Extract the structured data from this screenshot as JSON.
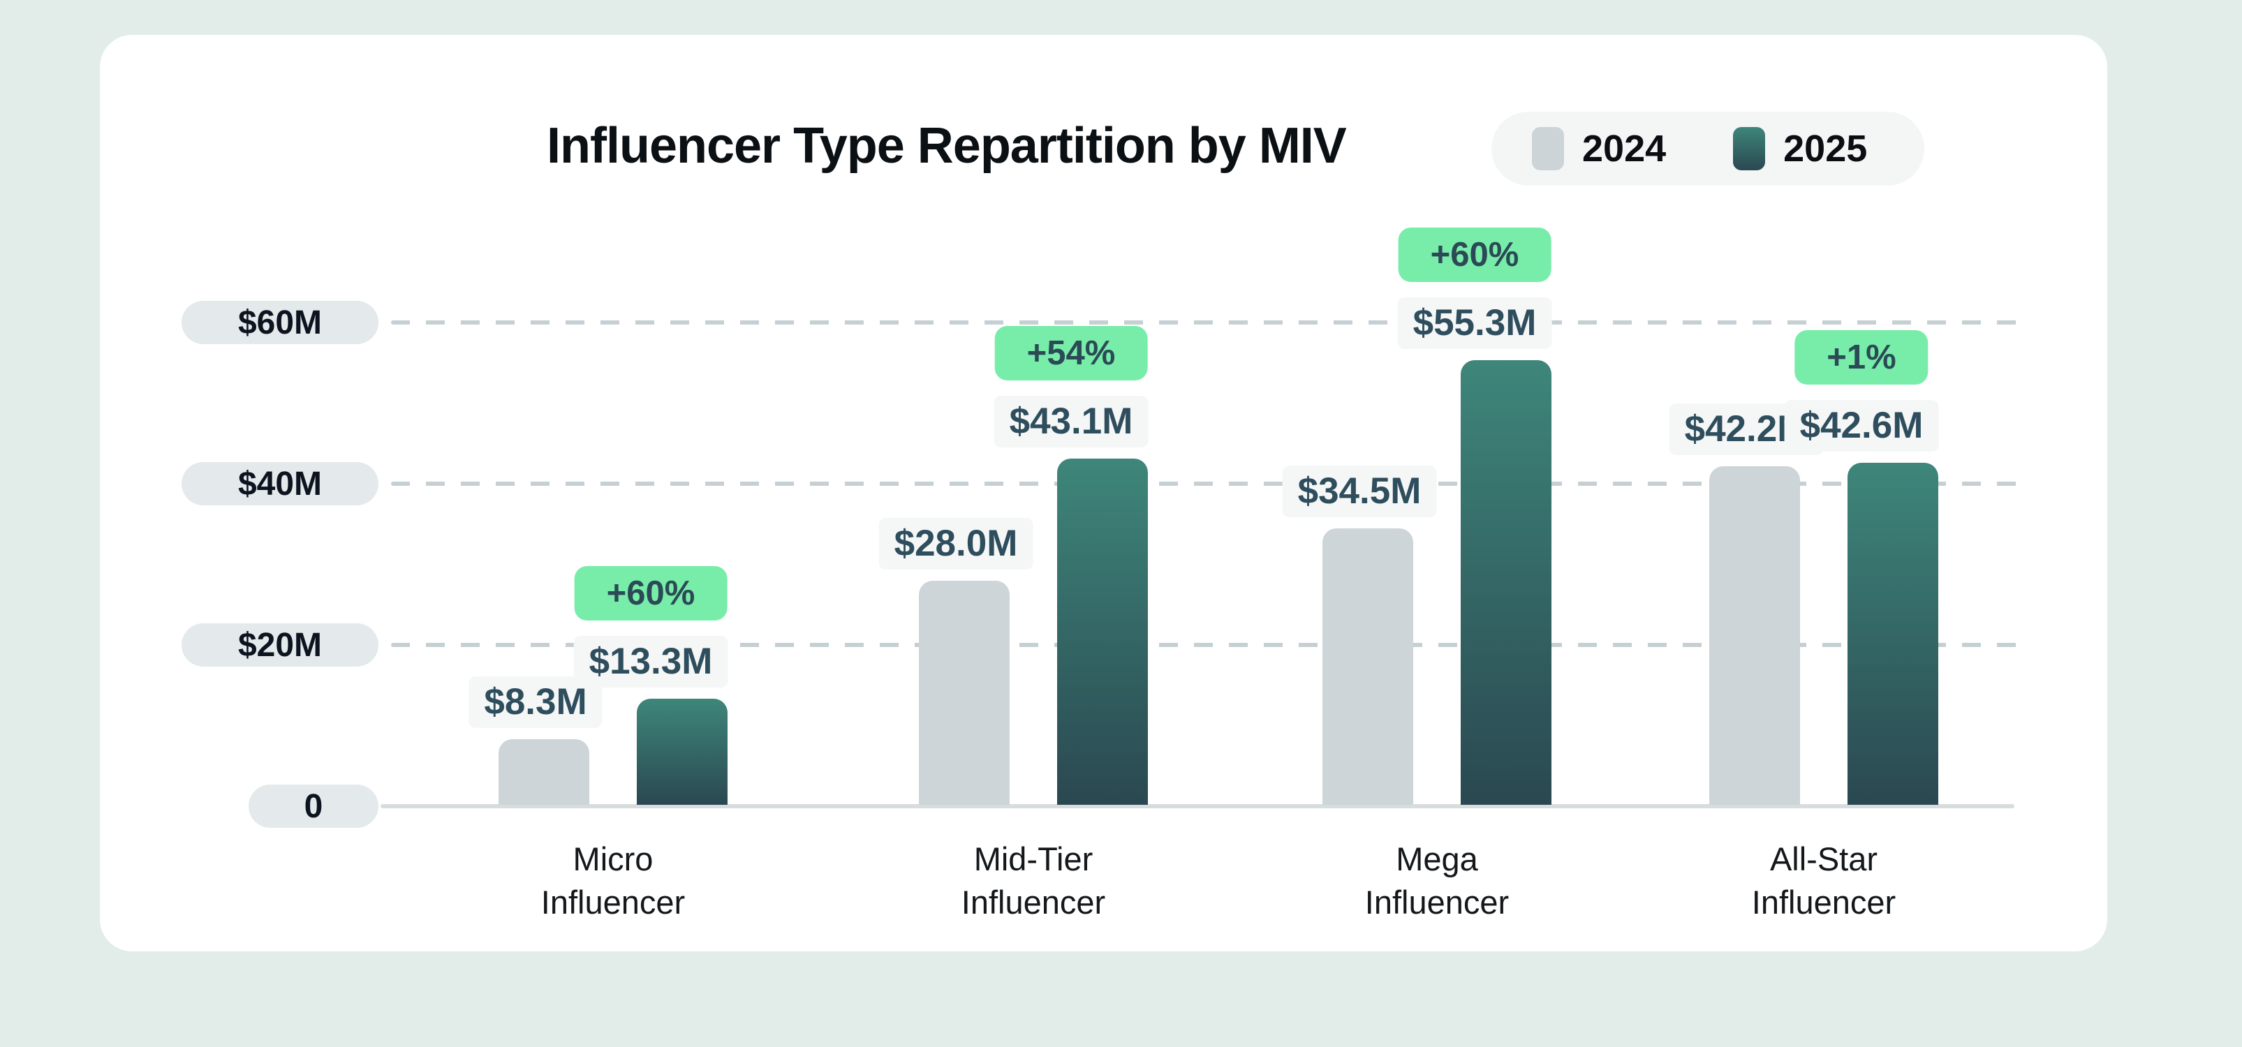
{
  "page": {
    "background_color": "#e2ece9",
    "card_color": "#ffffff"
  },
  "header": {
    "title": "Influencer Type Repartition by MIV"
  },
  "legend": {
    "items": [
      {
        "label": "2024",
        "swatch_color": "#ccd4d7"
      },
      {
        "label": "2025",
        "swatch_color_top": "#3e867a",
        "swatch_color_bottom": "#2a4851"
      }
    ]
  },
  "colors": {
    "bar_2024": "#cdd5d8",
    "bar_2025_top": "#3e867a",
    "bar_2025_bottom": "#2a4851",
    "badge_background": "#78eda9",
    "badge_text": "#2b4a55",
    "value_text": "#2e4d5d",
    "gridline": "#c6cfd3",
    "axis_line": "#d7dcde",
    "tick_pill": "#e4e9eb"
  },
  "chart_data": {
    "type": "bar",
    "title": "Influencer Type Repartition by MIV",
    "categories": [
      [
        "Micro",
        "Influencer"
      ],
      [
        "Mid-Tier",
        "Influencer"
      ],
      [
        "Mega",
        "Influencer"
      ],
      [
        "All-Star",
        "Influencer"
      ]
    ],
    "series": [
      {
        "name": "2024",
        "values": [
          8.3,
          28.0,
          34.5,
          42.2
        ],
        "labels": [
          "$8.3M",
          "$28.0M",
          "$34.5M",
          "$42.2M"
        ]
      },
      {
        "name": "2025",
        "values": [
          13.3,
          43.1,
          55.3,
          42.6
        ],
        "labels": [
          "$13.3M",
          "$43.1M",
          "$55.3M",
          "$42.6M"
        ]
      }
    ],
    "growth_badges": [
      "+60%",
      "+54%",
      "+60%",
      "+1%"
    ],
    "y_axis": {
      "unit": "USD millions",
      "min": 0,
      "max": 60,
      "ticks": [
        {
          "label": "$60M",
          "value": 60
        },
        {
          "label": "$40M",
          "value": 40
        },
        {
          "label": "$20M",
          "value": 20
        },
        {
          "label": "0",
          "value": 0
        }
      ]
    },
    "grid": "dashed horizontal",
    "legend_position": "top-right"
  }
}
